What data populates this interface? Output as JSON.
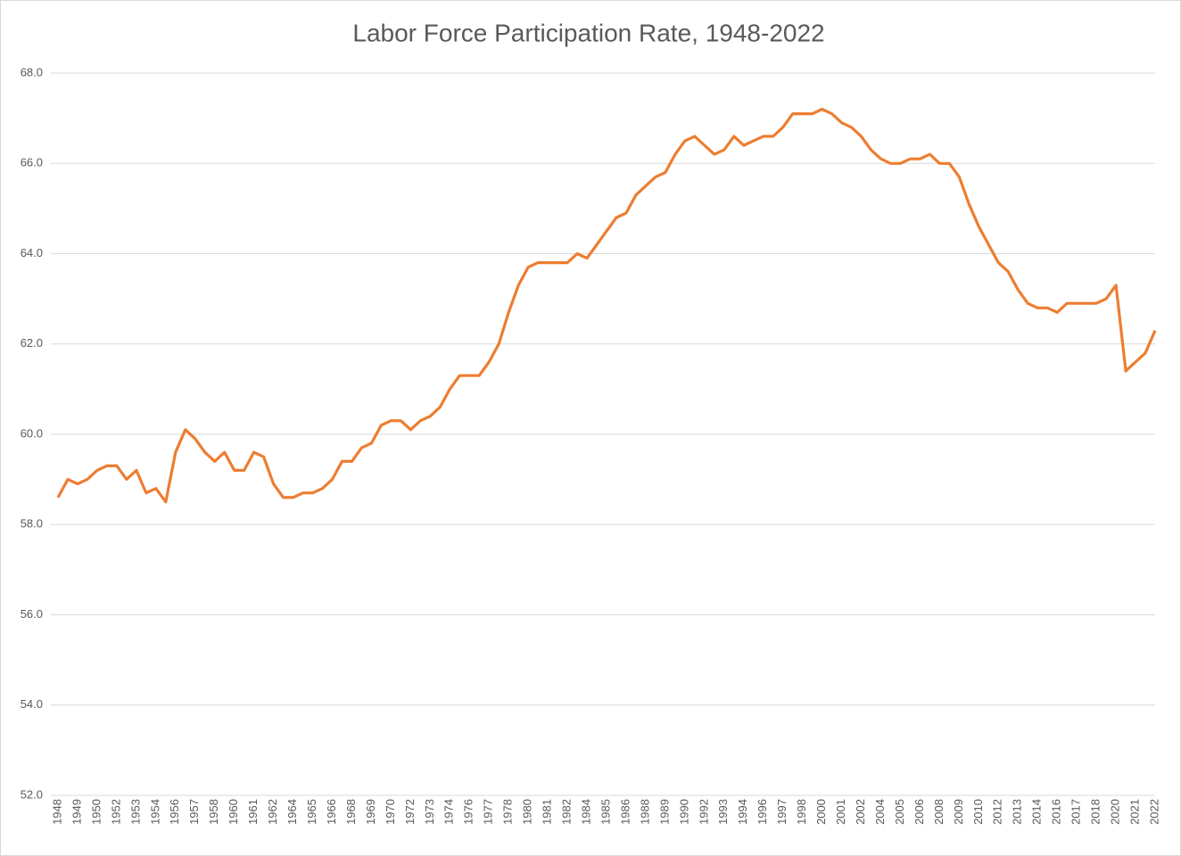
{
  "chart_data": {
    "type": "line",
    "title": "Labor Force Participation Rate, 1948-2022",
    "categories": [
      "1948",
      null,
      "1949",
      null,
      "1950",
      null,
      "1952",
      null,
      "1953",
      null,
      "1954",
      null,
      "1956",
      null,
      "1957",
      null,
      "1958",
      null,
      "1960",
      null,
      "1961",
      null,
      "1962",
      null,
      "1964",
      null,
      "1965",
      null,
      "1966",
      null,
      "1968",
      null,
      "1969",
      null,
      "1970",
      null,
      "1972",
      null,
      "1973",
      null,
      "1974",
      null,
      "1976",
      null,
      "1977",
      null,
      "1978",
      null,
      "1980",
      null,
      "1981",
      null,
      "1982",
      null,
      "1984",
      null,
      "1985",
      null,
      "1986",
      null,
      "1988",
      null,
      "1989",
      null,
      "1990",
      null,
      "1992",
      null,
      "1993",
      null,
      "1994",
      null,
      "1996",
      null,
      "1997",
      null,
      "1998",
      null,
      "2000",
      null,
      "2001",
      null,
      "2002",
      null,
      "2004",
      null,
      "2005",
      null,
      "2006",
      null,
      "2008",
      null,
      "2009",
      null,
      "2010",
      null,
      "2012",
      null,
      "2013",
      null,
      "2014",
      null,
      "2016",
      null,
      "2017",
      null,
      "2018",
      null,
      "2020",
      null,
      "2021",
      null,
      "2022"
    ],
    "series": [
      {
        "name": "Labor Force Participation Rate",
        "color": "#ed7d31",
        "values": [
          58.6,
          59.0,
          58.9,
          59.0,
          59.2,
          59.3,
          59.3,
          59.0,
          59.2,
          58.7,
          58.8,
          58.5,
          59.6,
          60.1,
          59.9,
          59.6,
          59.4,
          59.6,
          59.2,
          59.2,
          59.6,
          59.5,
          58.9,
          58.6,
          58.6,
          58.7,
          58.7,
          58.8,
          59.0,
          59.4,
          59.4,
          59.7,
          59.8,
          60.2,
          60.3,
          60.3,
          60.1,
          60.3,
          60.4,
          60.6,
          61.0,
          61.3,
          61.3,
          61.3,
          61.6,
          62.0,
          62.7,
          63.3,
          63.7,
          63.8,
          63.8,
          63.8,
          63.8,
          64.0,
          63.9,
          64.2,
          64.5,
          64.8,
          64.9,
          65.3,
          65.5,
          65.7,
          65.8,
          66.2,
          66.5,
          66.6,
          66.4,
          66.2,
          66.3,
          66.6,
          66.4,
          66.5,
          66.6,
          66.6,
          66.8,
          67.1,
          67.1,
          67.1,
          67.2,
          67.1,
          66.9,
          66.8,
          66.6,
          66.3,
          66.1,
          66.0,
          66.0,
          66.1,
          66.1,
          66.2,
          66.0,
          66.0,
          65.7,
          65.1,
          64.6,
          64.2,
          63.8,
          63.6,
          63.2,
          62.9,
          62.8,
          62.8,
          62.7,
          62.9,
          62.9,
          62.9,
          62.9,
          63.0,
          63.3,
          61.4,
          61.6,
          61.8,
          62.3
        ]
      }
    ],
    "ylim": [
      52,
      68
    ],
    "yticks": [
      {
        "value": 52,
        "label": "52.0"
      },
      {
        "value": 54,
        "label": "54.0"
      },
      {
        "value": 56,
        "label": "56.0"
      },
      {
        "value": 58,
        "label": "58.0"
      },
      {
        "value": 60,
        "label": "60.0"
      },
      {
        "value": 62,
        "label": "62.0"
      },
      {
        "value": 64,
        "label": "64.0"
      },
      {
        "value": 66,
        "label": "66.0"
      },
      {
        "value": 68,
        "label": "68.0"
      }
    ],
    "grid": true
  }
}
